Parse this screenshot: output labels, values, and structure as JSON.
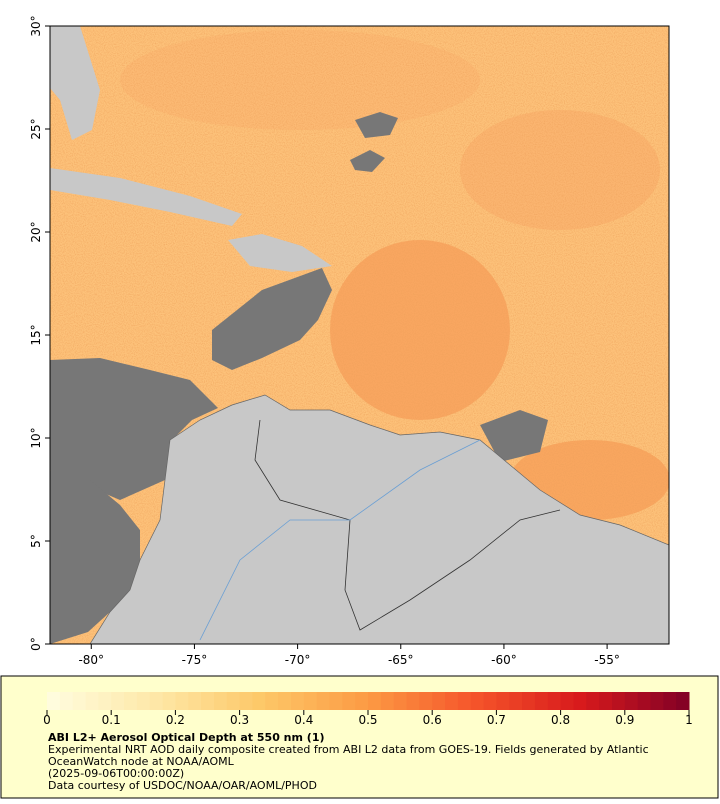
{
  "chart_data": {
    "type": "map",
    "xlim": [
      -82,
      -52
    ],
    "ylim": [
      0,
      30
    ],
    "xticks": [
      {
        "value": -80,
        "label": "-80°"
      },
      {
        "value": -75,
        "label": "-75°"
      },
      {
        "value": -70,
        "label": "-70°"
      },
      {
        "value": -65,
        "label": "-65°"
      },
      {
        "value": -60,
        "label": "-60°"
      },
      {
        "value": -55,
        "label": "-55°"
      }
    ],
    "yticks": [
      {
        "value": 0,
        "label": "0°"
      },
      {
        "value": 5,
        "label": "5°"
      },
      {
        "value": 10,
        "label": "10°"
      },
      {
        "value": 15,
        "label": "15°"
      },
      {
        "value": 20,
        "label": "20°"
      },
      {
        "value": 25,
        "label": "25°"
      },
      {
        "value": 30,
        "label": "30°"
      }
    ],
    "colorbar": {
      "lim": [
        0,
        1
      ],
      "ticks": [
        0,
        0.1,
        0.2,
        0.3,
        0.4,
        0.5,
        0.6,
        0.7,
        0.8,
        0.9,
        1
      ],
      "colormap": [
        "#fffde0",
        "#fee8a8",
        "#fdc868",
        "#fc9a44",
        "#f5542a",
        "#d7191c",
        "#800026"
      ]
    },
    "title": "ABI L2+ Aerosol Optical Depth at 550 nm (1)",
    "description": "Experimental NRT AOD daily composite created from ABI L2 data from GOES-19. Fields generated by Atlantic OceanWatch node at NOAA/AOML",
    "timestamp": "(2025-09-06T00:00:00Z)",
    "credit": "Data courtesy of USDOC/NOAA/OAR/AOML/PHOD"
  }
}
